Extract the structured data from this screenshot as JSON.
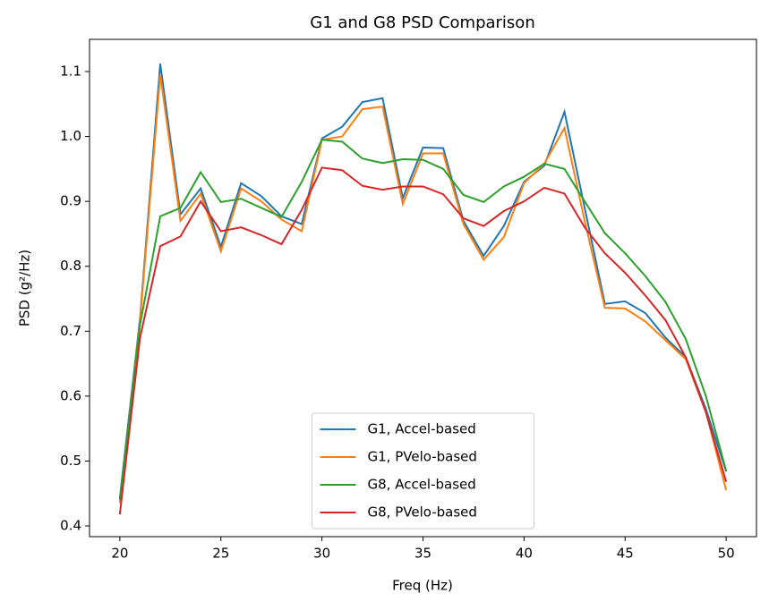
{
  "chart_data": {
    "type": "line",
    "title": "G1 and G8 PSD Comparison",
    "x_label": "Freq (Hz)",
    "y_label": "PSD (g²/Hz)",
    "x": [
      20,
      21,
      22,
      23,
      24,
      25,
      26,
      27,
      28,
      29,
      30,
      31,
      32,
      33,
      34,
      35,
      36,
      37,
      38,
      39,
      40,
      41,
      42,
      43,
      44,
      45,
      46,
      47,
      48,
      49,
      50
    ],
    "series": [
      {
        "name": "G1, Accel-based",
        "color": "#1f77b4",
        "values": [
          0.443,
          0.72,
          1.112,
          0.88,
          0.92,
          0.83,
          0.928,
          0.908,
          0.877,
          0.865,
          0.997,
          1.015,
          1.053,
          1.059,
          0.905,
          0.983,
          0.982,
          0.87,
          0.816,
          0.862,
          0.93,
          0.955,
          1.038,
          0.89,
          0.742,
          0.746,
          0.728,
          0.69,
          0.66,
          0.58,
          0.484
        ]
      },
      {
        "name": "G1, PVelo-based",
        "color": "#ff7f0e",
        "values": [
          0.435,
          0.715,
          1.095,
          0.87,
          0.912,
          0.823,
          0.92,
          0.9,
          0.872,
          0.854,
          0.995,
          1.0,
          1.042,
          1.046,
          0.896,
          0.974,
          0.974,
          0.865,
          0.81,
          0.845,
          0.928,
          0.958,
          1.013,
          0.87,
          0.736,
          0.735,
          0.715,
          0.686,
          0.657,
          0.575,
          0.455
        ]
      },
      {
        "name": "G8, Accel-based",
        "color": "#2ca02c",
        "values": [
          0.44,
          0.71,
          0.877,
          0.89,
          0.945,
          0.899,
          0.904,
          0.89,
          0.876,
          0.93,
          0.995,
          0.992,
          0.966,
          0.959,
          0.965,
          0.964,
          0.95,
          0.91,
          0.899,
          0.923,
          0.938,
          0.958,
          0.95,
          0.9,
          0.851,
          0.82,
          0.785,
          0.745,
          0.688,
          0.6,
          0.485
        ]
      },
      {
        "name": "G8, PVelo-based",
        "color": "#d62728",
        "values": [
          0.418,
          0.69,
          0.831,
          0.846,
          0.9,
          0.854,
          0.86,
          0.848,
          0.834,
          0.887,
          0.952,
          0.948,
          0.924,
          0.918,
          0.923,
          0.923,
          0.911,
          0.874,
          0.862,
          0.885,
          0.9,
          0.921,
          0.912,
          0.86,
          0.82,
          0.79,
          0.755,
          0.717,
          0.66,
          0.575,
          0.468
        ]
      }
    ],
    "xlim": [
      18.5,
      51.5
    ],
    "ylim": [
      0.3835,
      1.1496
    ],
    "xticks": [
      20,
      25,
      30,
      35,
      40,
      45,
      50
    ],
    "yticks": [
      0.4,
      0.5,
      0.6,
      0.7,
      0.8,
      0.9,
      {
        "value": 1,
        "label": "1.0"
      },
      1.1
    ],
    "legend": "lower center"
  }
}
